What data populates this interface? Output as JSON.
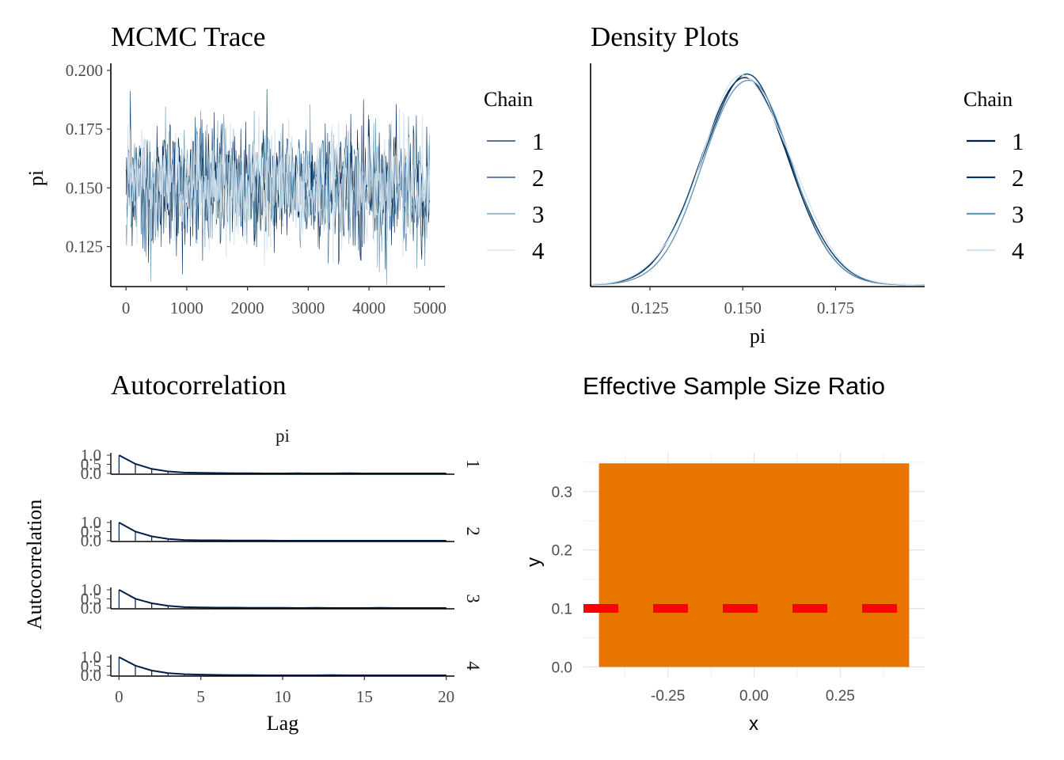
{
  "chart_data": [
    {
      "type": "line",
      "title": "MCMC Trace",
      "xlabel": "",
      "ylabel": "pi",
      "xlim": [
        -250,
        5250
      ],
      "ylim": [
        0.108,
        0.203
      ],
      "xticks": [
        0,
        1000,
        2000,
        3000,
        4000,
        5000
      ],
      "xtick_labels": [
        "0",
        "1000",
        "2000",
        "3000",
        "4000",
        "5000"
      ],
      "yticks": [
        0.125,
        0.15,
        0.175,
        0.2
      ],
      "ytick_labels": [
        "0.125",
        "0.150",
        "0.175",
        "0.200"
      ],
      "legend": {
        "title": "Chain",
        "entries": [
          "1",
          "2",
          "3",
          "4"
        ],
        "position": "right"
      },
      "series": [
        {
          "name": "1",
          "color": "#011f4b",
          "mean": 0.151,
          "lower": 0.115,
          "upper": 0.188
        },
        {
          "name": "2",
          "color": "#03396c",
          "mean": 0.151,
          "lower": 0.112,
          "upper": 0.199
        },
        {
          "name": "3",
          "color": "#6497b1",
          "mean": 0.151,
          "lower": 0.108,
          "upper": 0.195
        },
        {
          "name": "4",
          "color": "#d3e3ef",
          "mean": 0.151,
          "lower": 0.116,
          "upper": 0.197
        }
      ],
      "iterations": 5000
    },
    {
      "type": "line",
      "title": "Density Plots",
      "xlabel": "pi",
      "ylabel": "",
      "xlim": [
        0.109,
        0.199
      ],
      "xticks": [
        0.125,
        0.15,
        0.175
      ],
      "xtick_labels": [
        "0.125",
        "0.150",
        "0.175"
      ],
      "legend": {
        "title": "Chain",
        "entries": [
          "1",
          "2",
          "3",
          "4"
        ],
        "position": "right"
      },
      "series": [
        {
          "name": "1",
          "color": "#011f4b",
          "mean": 0.1505,
          "sd": 0.0118
        },
        {
          "name": "2",
          "color": "#03396c",
          "mean": 0.1508,
          "sd": 0.012
        },
        {
          "name": "3",
          "color": "#6497b1",
          "mean": 0.1512,
          "sd": 0.0115
        },
        {
          "name": "4",
          "color": "#d3e3ef",
          "mean": 0.151,
          "sd": 0.0122
        }
      ]
    },
    {
      "type": "bar",
      "title": "Autocorrelation",
      "facet_label": "pi",
      "xlabel": "Lag",
      "ylabel": "Autocorrelation",
      "xlim": [
        -0.5,
        20.5
      ],
      "xticks": [
        0,
        5,
        10,
        15,
        20
      ],
      "xtick_labels": [
        "0",
        "5",
        "10",
        "15",
        "20"
      ],
      "yticks": [
        0,
        0.5,
        1
      ],
      "ytick_labels": [
        "0.0",
        "0.5",
        "1.0"
      ],
      "lags": [
        0,
        1,
        2,
        3,
        4,
        5,
        6,
        7,
        8,
        9,
        10,
        11,
        12,
        13,
        14,
        15,
        16,
        17,
        18,
        19,
        20
      ],
      "panels": [
        {
          "label": "1",
          "values": [
            1.0,
            0.52,
            0.25,
            0.11,
            0.05,
            0.03,
            0.02,
            0.01,
            0.01,
            0.0,
            0.0,
            0.01,
            0.0,
            0.0,
            0.01,
            0.0,
            0.0,
            0.0,
            0.0,
            0.0,
            0.0
          ]
        },
        {
          "label": "2",
          "values": [
            1.0,
            0.5,
            0.24,
            0.1,
            0.04,
            0.02,
            0.02,
            0.01,
            0.01,
            0.01,
            0.0,
            0.0,
            0.0,
            0.0,
            0.0,
            0.0,
            0.0,
            0.0,
            0.0,
            0.0,
            0.0
          ]
        },
        {
          "label": "3",
          "values": [
            1.0,
            0.51,
            0.26,
            0.12,
            0.05,
            0.03,
            0.02,
            0.02,
            0.01,
            0.01,
            0.01,
            0.0,
            0.01,
            0.0,
            0.0,
            0.0,
            0.01,
            0.0,
            0.0,
            0.0,
            0.0
          ]
        },
        {
          "label": "4",
          "values": [
            1.0,
            0.53,
            0.26,
            0.12,
            0.06,
            0.04,
            0.02,
            0.01,
            0.01,
            0.0,
            0.0,
            0.0,
            0.0,
            0.01,
            0.0,
            0.0,
            0.0,
            0.0,
            0.0,
            0.0,
            0.0
          ]
        }
      ],
      "color": "#011f4b"
    },
    {
      "type": "bar",
      "title": "Effective Sample Size Ratio",
      "xlabel": "x",
      "ylabel": "y",
      "xlim": [
        -0.495,
        0.495
      ],
      "ylim": [
        -0.017,
        0.366
      ],
      "xticks": [
        -0.25,
        0,
        0.25
      ],
      "xtick_labels": [
        "-0.25",
        "0.00",
        "0.25"
      ],
      "yticks": [
        0,
        0.1,
        0.2,
        0.3
      ],
      "ytick_labels": [
        "0.0",
        "0.1",
        "0.2",
        "0.3"
      ],
      "bar": {
        "x": 0,
        "width": 0.9,
        "value": 0.348,
        "color": "#e87500"
      },
      "hline": {
        "y": 0.1,
        "color": "#ff0000",
        "style": "dashed"
      }
    }
  ]
}
